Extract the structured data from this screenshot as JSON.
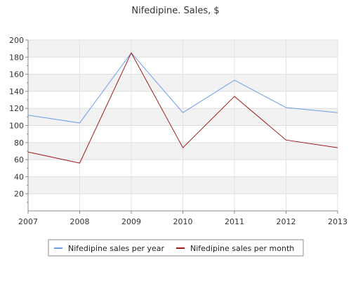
{
  "chart_data": {
    "type": "line",
    "title": "Nifedipine. Sales, $",
    "x": [
      "2007",
      "2008",
      "2009",
      "2010",
      "2011",
      "2012",
      "2013"
    ],
    "ylim": [
      0,
      200
    ],
    "yticks": [
      20,
      40,
      60,
      80,
      100,
      120,
      140,
      160,
      180,
      200
    ],
    "grid": true,
    "legend_position": "bottom",
    "series": [
      {
        "name": "Nifedipine sales per year",
        "color": "#6e9ee8",
        "values": [
          112,
          103,
          185,
          115,
          153,
          121,
          115
        ]
      },
      {
        "name": "Nifedipine sales per month",
        "color": "#a01a1a",
        "values": [
          69,
          56,
          185,
          74,
          134,
          83,
          74
        ]
      }
    ]
  }
}
